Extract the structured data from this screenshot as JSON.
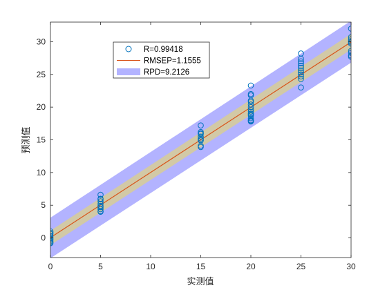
{
  "chart_data": {
    "type": "scatter",
    "xlabel": "实测值",
    "ylabel": "预测值",
    "xlim": [
      0,
      30
    ],
    "ylim": [
      -3,
      33
    ],
    "xticks": [
      0,
      5,
      10,
      15,
      20,
      25,
      30
    ],
    "yticks": [
      0,
      5,
      10,
      15,
      20,
      25,
      30
    ],
    "grid": false,
    "legend_position": "top-left",
    "colors": {
      "points": "#0072BD",
      "fit_line": "#D95319",
      "outer_band": "#B3B3FF",
      "inner_band": "#D2C9A6",
      "axes": "#262626"
    },
    "series": [
      {
        "name": "R=0.99418",
        "type": "scatter",
        "x": [
          0,
          0,
          0,
          0,
          0,
          0,
          0,
          0,
          0,
          0,
          5,
          5,
          5,
          5,
          5,
          5,
          5,
          5,
          5,
          5,
          15,
          15,
          15,
          15,
          15,
          15,
          15,
          15,
          15,
          15,
          20,
          20,
          20,
          20,
          20,
          20,
          20,
          20,
          20,
          20,
          20,
          20,
          20,
          20,
          20,
          20,
          25,
          25,
          25,
          25,
          25,
          25,
          25,
          25,
          25,
          25,
          25,
          25,
          30,
          30,
          30,
          30,
          30,
          30,
          30,
          30,
          30,
          30
        ],
        "y": [
          1.0,
          0.6,
          0.3,
          0.1,
          -0.1,
          -0.3,
          -0.5,
          -0.7,
          -0.8,
          0.8,
          6.6,
          6.0,
          5.6,
          5.2,
          4.9,
          4.7,
          4.4,
          4.1,
          4.0,
          5.9,
          17.2,
          16.2,
          15.9,
          15.5,
          15.2,
          15.0,
          14.9,
          14.1,
          13.9,
          16.0,
          23.3,
          22.0,
          21.8,
          21.0,
          20.4,
          20.0,
          19.6,
          19.3,
          19.0,
          18.7,
          18.3,
          18.0,
          17.9,
          17.8,
          20.8,
          18.9,
          28.2,
          27.4,
          27.0,
          26.3,
          26.0,
          25.6,
          25.3,
          25.0,
          24.7,
          24.3,
          23.0,
          26.7,
          32.0,
          30.7,
          30.4,
          30.1,
          29.9,
          29.7,
          28.6,
          28.3,
          27.9,
          27.7
        ]
      },
      {
        "name": "RMSEP=1.1555",
        "type": "line",
        "x": [
          0,
          30
        ],
        "y": [
          0.05,
          29.95
        ]
      },
      {
        "name": "RPD=9.2126",
        "type": "band",
        "x": [
          0,
          30
        ],
        "lower": [
          -3.1,
          26.8
        ],
        "upper": [
          3.1,
          33.2
        ],
        "inner_lower": [
          -1.1,
          28.8
        ],
        "inner_upper": [
          1.1,
          31.2
        ]
      }
    ]
  }
}
